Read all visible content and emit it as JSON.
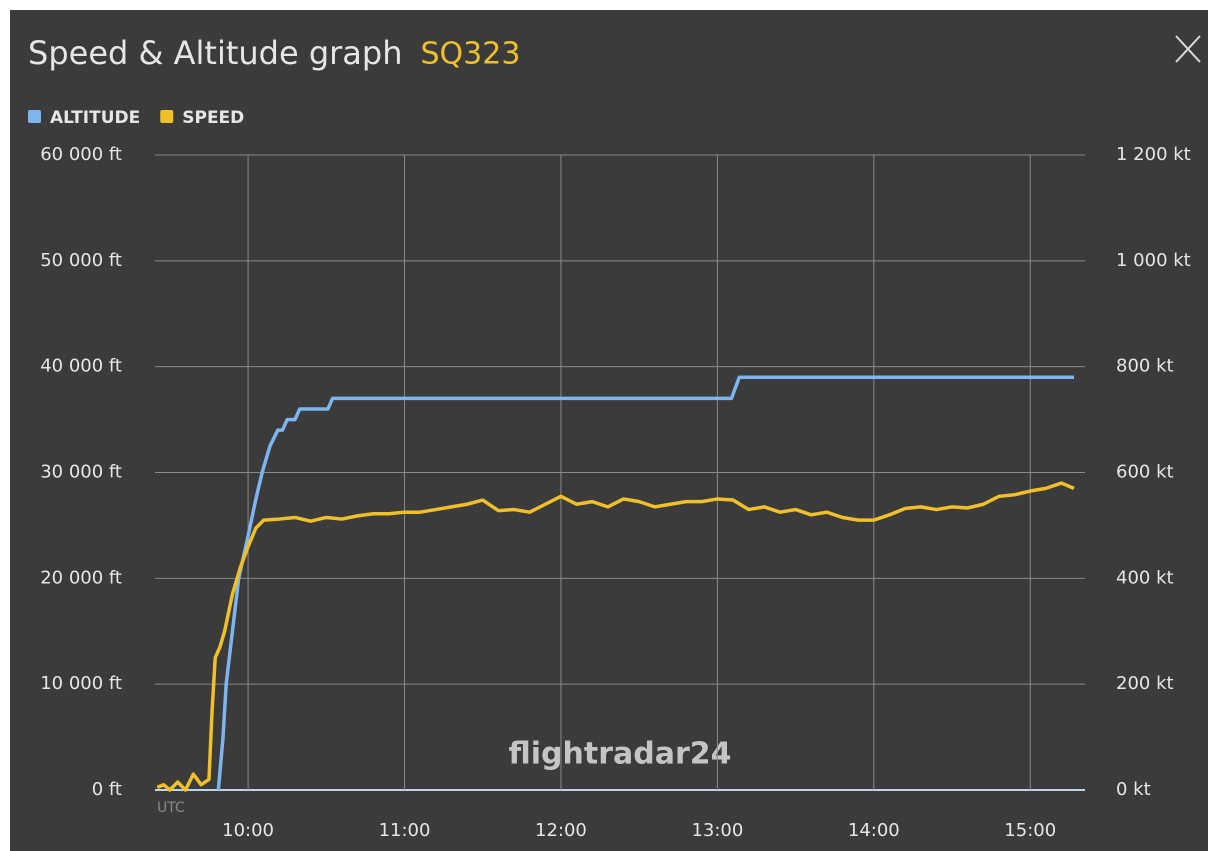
{
  "chart_data": {
    "type": "line",
    "title": "Speed & Altitude graph",
    "subtitle": "SQ323",
    "x_unit_label": "UTC",
    "watermark": "flightradar24",
    "xlim": [
      9.405,
      15.35
    ],
    "xticks": [
      {
        "value": 10,
        "label": "10:00"
      },
      {
        "value": 11,
        "label": "11:00"
      },
      {
        "value": 12,
        "label": "12:00"
      },
      {
        "value": 13,
        "label": "13:00"
      },
      {
        "value": 14,
        "label": "14:00"
      },
      {
        "value": 15,
        "label": "15:00"
      }
    ],
    "ylim": [
      0,
      60000
    ],
    "yticks": [
      {
        "value": 0,
        "label": "0 ft"
      },
      {
        "value": 10000,
        "label": "10 000 ft"
      },
      {
        "value": 20000,
        "label": "20 000 ft"
      },
      {
        "value": 30000,
        "label": "30 000 ft"
      },
      {
        "value": 40000,
        "label": "40 000 ft"
      },
      {
        "value": 50000,
        "label": "50 000 ft"
      },
      {
        "value": 60000,
        "label": "60 000 ft"
      }
    ],
    "y2lim": [
      0,
      1200
    ],
    "y2ticks": [
      {
        "value": 0,
        "label": "0 kt"
      },
      {
        "value": 200,
        "label": "200 kt"
      },
      {
        "value": 400,
        "label": "400 kt"
      },
      {
        "value": 600,
        "label": "600 kt"
      },
      {
        "value": 800,
        "label": "800 kt"
      },
      {
        "value": 1000,
        "label": "1 000 kt"
      },
      {
        "value": 1200,
        "label": "1 200 kt"
      }
    ],
    "grid": true,
    "series": [
      {
        "name": "ALTITUDE",
        "color": "#7db5ee",
        "axis": "y",
        "x": [
          9.81,
          9.84,
          9.86,
          9.9,
          9.94,
          10.0,
          10.05,
          10.09,
          10.14,
          10.19,
          10.22,
          10.25,
          10.3,
          10.33,
          10.51,
          10.54,
          11.0,
          12.0,
          13.0,
          13.09,
          13.14,
          14.0,
          15.0,
          15.28
        ],
        "values": [
          0,
          5000,
          10000,
          15000,
          20000,
          24000,
          27500,
          30000,
          32500,
          34000,
          34000,
          35000,
          35000,
          36000,
          36000,
          37000,
          37000,
          37000,
          37000,
          37000,
          39000,
          39000,
          39000,
          39000
        ]
      },
      {
        "name": "SPEED",
        "color": "#f0c02a",
        "axis": "y2",
        "x": [
          9.42,
          9.46,
          9.5,
          9.55,
          9.6,
          9.65,
          9.7,
          9.75,
          9.77,
          9.79,
          9.82,
          9.85,
          9.9,
          9.95,
          10.0,
          10.05,
          10.1,
          10.2,
          10.3,
          10.4,
          10.5,
          10.6,
          10.7,
          10.8,
          10.9,
          11.0,
          11.1,
          11.2,
          11.3,
          11.4,
          11.5,
          11.6,
          11.7,
          11.8,
          11.9,
          12.0,
          12.1,
          12.2,
          12.3,
          12.4,
          12.5,
          12.6,
          12.7,
          12.8,
          12.9,
          13.0,
          13.1,
          13.2,
          13.3,
          13.4,
          13.5,
          13.6,
          13.7,
          13.8,
          13.9,
          14.0,
          14.1,
          14.2,
          14.3,
          14.4,
          14.5,
          14.6,
          14.7,
          14.8,
          14.9,
          15.0,
          15.1,
          15.2,
          15.28
        ],
        "values": [
          5,
          10,
          0,
          15,
          0,
          30,
          10,
          20,
          150,
          250,
          270,
          300,
          370,
          420,
          460,
          495,
          510,
          512,
          515,
          508,
          515,
          512,
          518,
          522,
          522,
          525,
          525,
          530,
          535,
          540,
          548,
          528,
          530,
          525,
          540,
          555,
          540,
          545,
          535,
          550,
          545,
          535,
          540,
          545,
          545,
          550,
          548,
          530,
          535,
          525,
          530,
          520,
          525,
          515,
          510,
          510,
          520,
          532,
          535,
          530,
          535,
          533,
          540,
          555,
          558,
          565,
          570,
          580,
          570
        ]
      }
    ]
  }
}
